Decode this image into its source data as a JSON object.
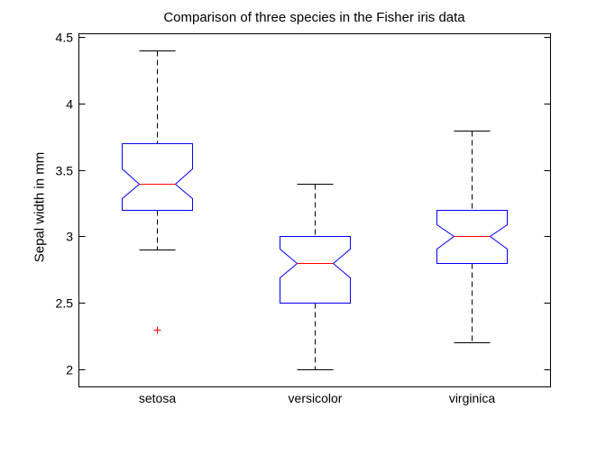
{
  "figure": {
    "title": "Comparison of three species in the Fisher iris data",
    "ylabel": "Sepal width in mm"
  },
  "chart_data": {
    "type": "boxplot",
    "title": "Comparison of three species in the Fisher iris data",
    "xlabel": "",
    "ylabel": "Sepal width in mm",
    "categories": [
      "setosa",
      "versicolor",
      "virginica"
    ],
    "x_positions": [
      1,
      2,
      3
    ],
    "xlim": [
      0.5,
      3.5
    ],
    "ylim": [
      1.87,
      4.53
    ],
    "yticks": [
      2,
      2.5,
      3,
      3.5,
      4,
      4.5
    ],
    "grid": false,
    "notched": true,
    "legend": null,
    "series": [
      {
        "name": "setosa",
        "whisker_low": 2.9,
        "q1": 3.2,
        "median": 3.4,
        "q3": 3.7,
        "whisker_high": 4.4,
        "notch_low": 3.29,
        "notch_high": 3.51,
        "outliers": [
          2.3
        ]
      },
      {
        "name": "versicolor",
        "whisker_low": 2.0,
        "q1": 2.5,
        "median": 2.8,
        "q3": 3.0,
        "whisker_high": 3.4,
        "notch_low": 2.69,
        "notch_high": 2.91,
        "outliers": []
      },
      {
        "name": "virginica",
        "whisker_low": 2.2,
        "q1": 2.8,
        "median": 3.0,
        "q3": 3.2,
        "whisker_high": 3.8,
        "notch_low": 2.91,
        "notch_high": 3.09,
        "outliers": []
      }
    ],
    "colors": {
      "box": "#0000ff",
      "median": "#ff0000",
      "whisker": "#000000",
      "cap": "#000000",
      "outlier": "#ff0000",
      "axis": "#000000",
      "background": "#ffffff"
    },
    "outlier_marker": "plus"
  }
}
